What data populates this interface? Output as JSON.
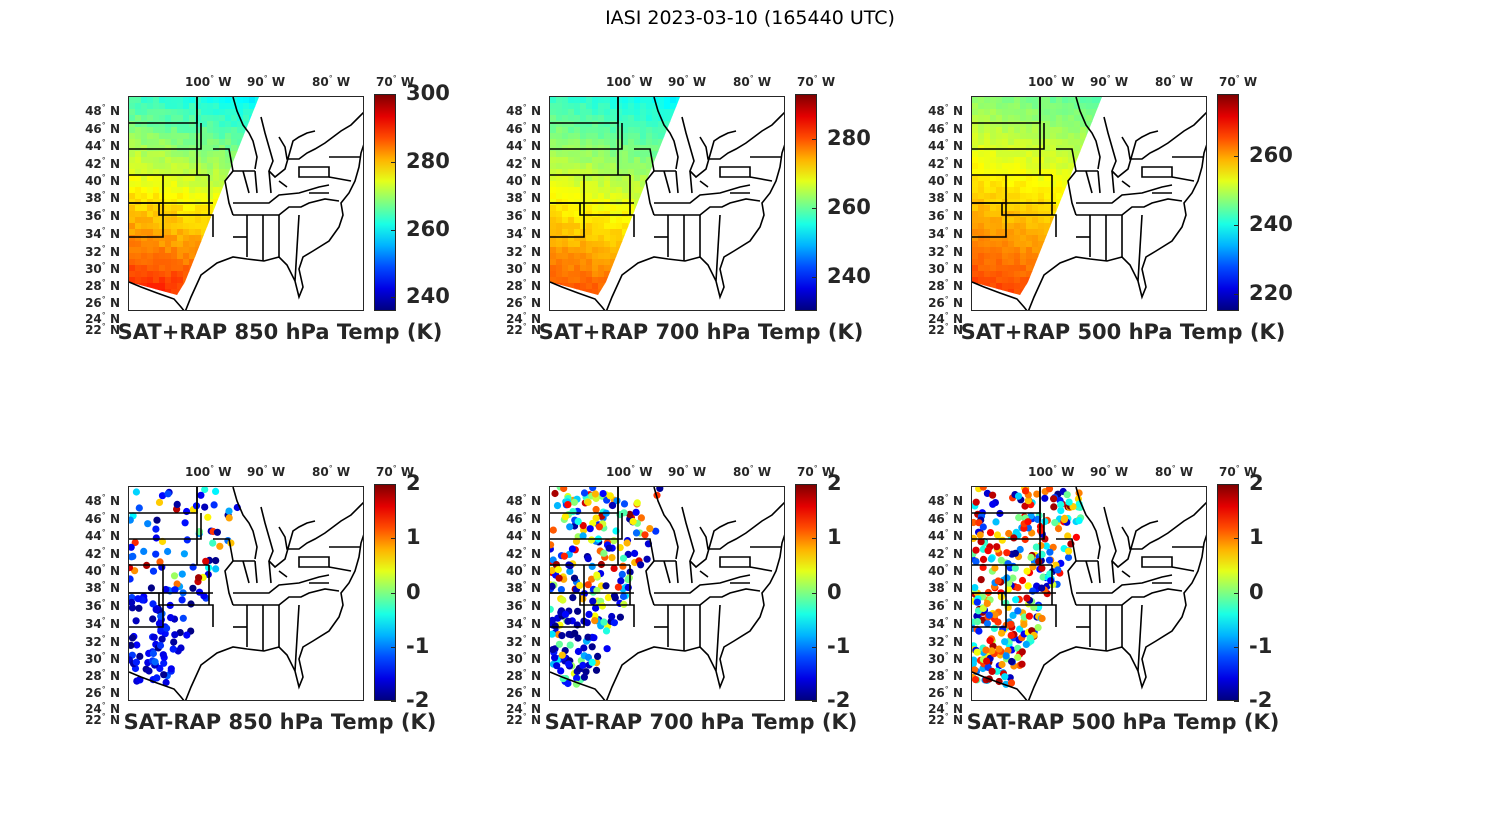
{
  "figure": {
    "title": "IASI 2023-03-10 (165440 UTC)"
  },
  "lon_labels": [
    "100",
    "90",
    "80",
    "70"
  ],
  "lon_suffix": "W",
  "lat_labels": [
    "48",
    "46",
    "44",
    "42",
    "40",
    "38",
    "36",
    "34",
    "32",
    "30",
    "28",
    "26",
    "24",
    "22"
  ],
  "lat_suffix": "N",
  "colors": {
    "colormap": "jet",
    "border_color": "#000000",
    "frame_color": "#262626"
  },
  "panels": [
    {
      "title": "SAT+RAP 850 hPa Temp (K)",
      "type": "field",
      "colorbar": {
        "min": 236,
        "max": 300,
        "ticks": [
          "240",
          "260",
          "280",
          "300"
        ],
        "tick_values": [
          240,
          260,
          280,
          300
        ]
      },
      "value_range": [
        258,
        292
      ]
    },
    {
      "title": "SAT+RAP 700 hPa Temp (K)",
      "type": "field",
      "colorbar": {
        "min": 230,
        "max": 293,
        "ticks": [
          "240",
          "260",
          "280"
        ],
        "tick_values": [
          240,
          260,
          280
        ]
      },
      "value_range": [
        252,
        282
      ]
    },
    {
      "title": "SAT+RAP 500 hPa Temp (K)",
      "type": "field",
      "colorbar": {
        "min": 215,
        "max": 278,
        "ticks": [
          "220",
          "240",
          "260"
        ],
        "tick_values": [
          220,
          240,
          260
        ]
      },
      "value_range": [
        243,
        268
      ]
    },
    {
      "title": "SAT-RAP 850 hPa Temp (K)",
      "type": "diff",
      "colorbar": {
        "min": -2,
        "max": 2,
        "ticks": [
          "-2",
          "-1",
          "0",
          "1",
          "2"
        ],
        "tick_values": [
          -2,
          -1,
          0,
          1,
          2
        ]
      },
      "value_range": [
        -2,
        2
      ]
    },
    {
      "title": "SAT-RAP 700 hPa Temp (K)",
      "type": "diff",
      "colorbar": {
        "min": -2,
        "max": 2,
        "ticks": [
          "-2",
          "-1",
          "0",
          "1",
          "2"
        ],
        "tick_values": [
          -2,
          -1,
          0,
          1,
          2
        ]
      },
      "value_range": [
        -2,
        2
      ]
    },
    {
      "title": "SAT-RAP 500 hPa Temp (K)",
      "type": "diff",
      "colorbar": {
        "min": -2,
        "max": 2,
        "ticks": [
          "-2",
          "-1",
          "0",
          "1",
          "2"
        ],
        "tick_values": [
          -2,
          -1,
          0,
          1,
          2
        ]
      },
      "value_range": [
        -2,
        2
      ]
    }
  ]
}
